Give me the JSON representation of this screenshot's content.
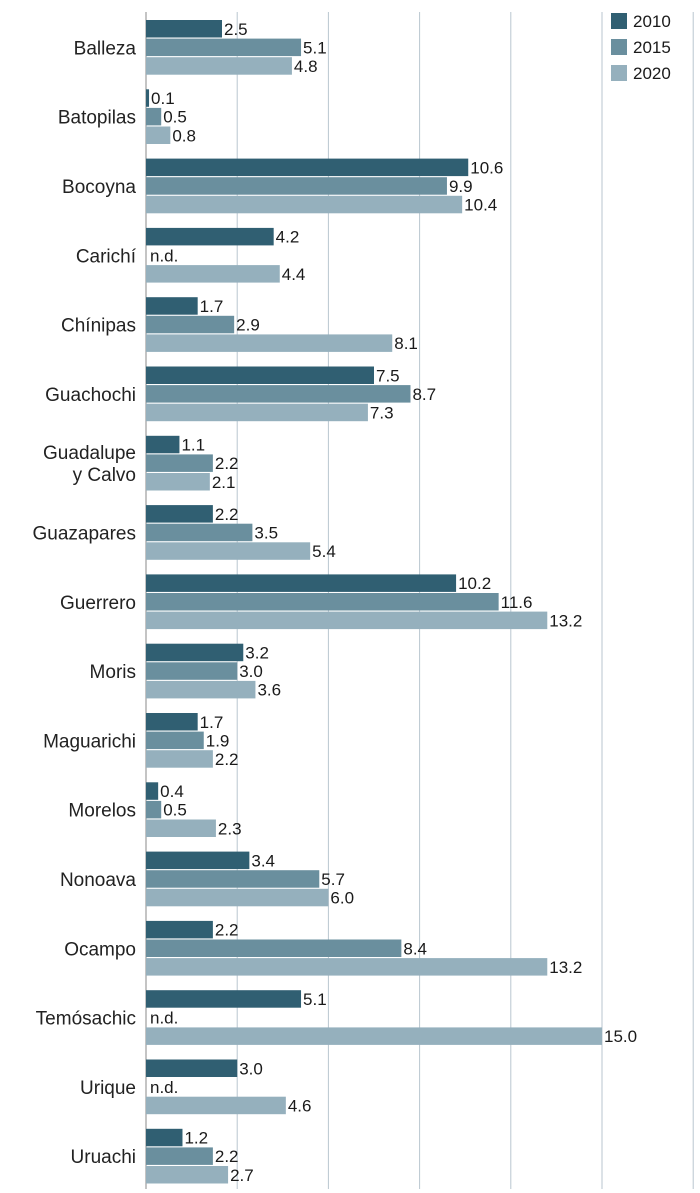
{
  "chart_data": {
    "type": "bar",
    "orientation": "horizontal",
    "categories": [
      [
        "Balleza"
      ],
      [
        "Batopilas"
      ],
      [
        "Bocoyna"
      ],
      [
        "Carichí"
      ],
      [
        "Chínipas"
      ],
      [
        "Guachochi"
      ],
      [
        "Guadalupe",
        "y Calvo"
      ],
      [
        "Guazapares"
      ],
      [
        "Guerrero"
      ],
      [
        "Moris"
      ],
      [
        "Maguarichi"
      ],
      [
        "Morelos"
      ],
      [
        "Nonoava"
      ],
      [
        "Ocampo"
      ],
      [
        "Temósachic"
      ],
      [
        "Urique"
      ],
      [
        "Uruachi"
      ]
    ],
    "series": [
      {
        "name": "2010",
        "color": "#305f72",
        "values": [
          2.5,
          0.1,
          10.6,
          4.2,
          1.7,
          7.5,
          1.1,
          2.2,
          10.2,
          3.2,
          1.7,
          0.4,
          3.4,
          2.2,
          5.1,
          3.0,
          1.2
        ],
        "labels": [
          "2.5",
          "0.1",
          "10.6",
          "4.2",
          "1.7",
          "7.5",
          "1.1",
          "2.2",
          "10.2",
          "3.2",
          "1.7",
          "0.4",
          "3.4",
          "2.2",
          "5.1",
          "3.0",
          "1.2"
        ]
      },
      {
        "name": "2015",
        "color": "#6a8f9e",
        "values": [
          5.1,
          0.5,
          9.9,
          null,
          2.9,
          8.7,
          2.2,
          3.5,
          11.6,
          3.0,
          1.9,
          0.5,
          5.7,
          8.4,
          null,
          null,
          2.2
        ],
        "labels": [
          "5.1",
          "0.5",
          "9.9",
          "n.d.",
          "2.9",
          "8.7",
          "2.2",
          "3.5",
          "11.6",
          "3.0",
          "1.9",
          "0.5",
          "5.7",
          "8.4",
          "n.d.",
          "n.d.",
          "2.2"
        ]
      },
      {
        "name": "2020",
        "color": "#95b0bd",
        "values": [
          4.8,
          0.8,
          10.4,
          4.4,
          8.1,
          7.3,
          2.1,
          5.4,
          13.2,
          3.6,
          2.2,
          2.3,
          6.0,
          13.2,
          15.0,
          4.6,
          2.7
        ],
        "labels": [
          "4.8",
          "0.8",
          "10.4",
          "4.4",
          "8.1",
          "7.3",
          "2.1",
          "5.4",
          "13.2",
          "3.6",
          "2.2",
          "2.3",
          "6.0",
          "13.2",
          "15.0",
          "4.6",
          "2.7"
        ]
      }
    ],
    "xlim": [
      0,
      18
    ],
    "grid": true,
    "legend": "top-right",
    "title": "",
    "xlabel": "",
    "ylabel": ""
  }
}
